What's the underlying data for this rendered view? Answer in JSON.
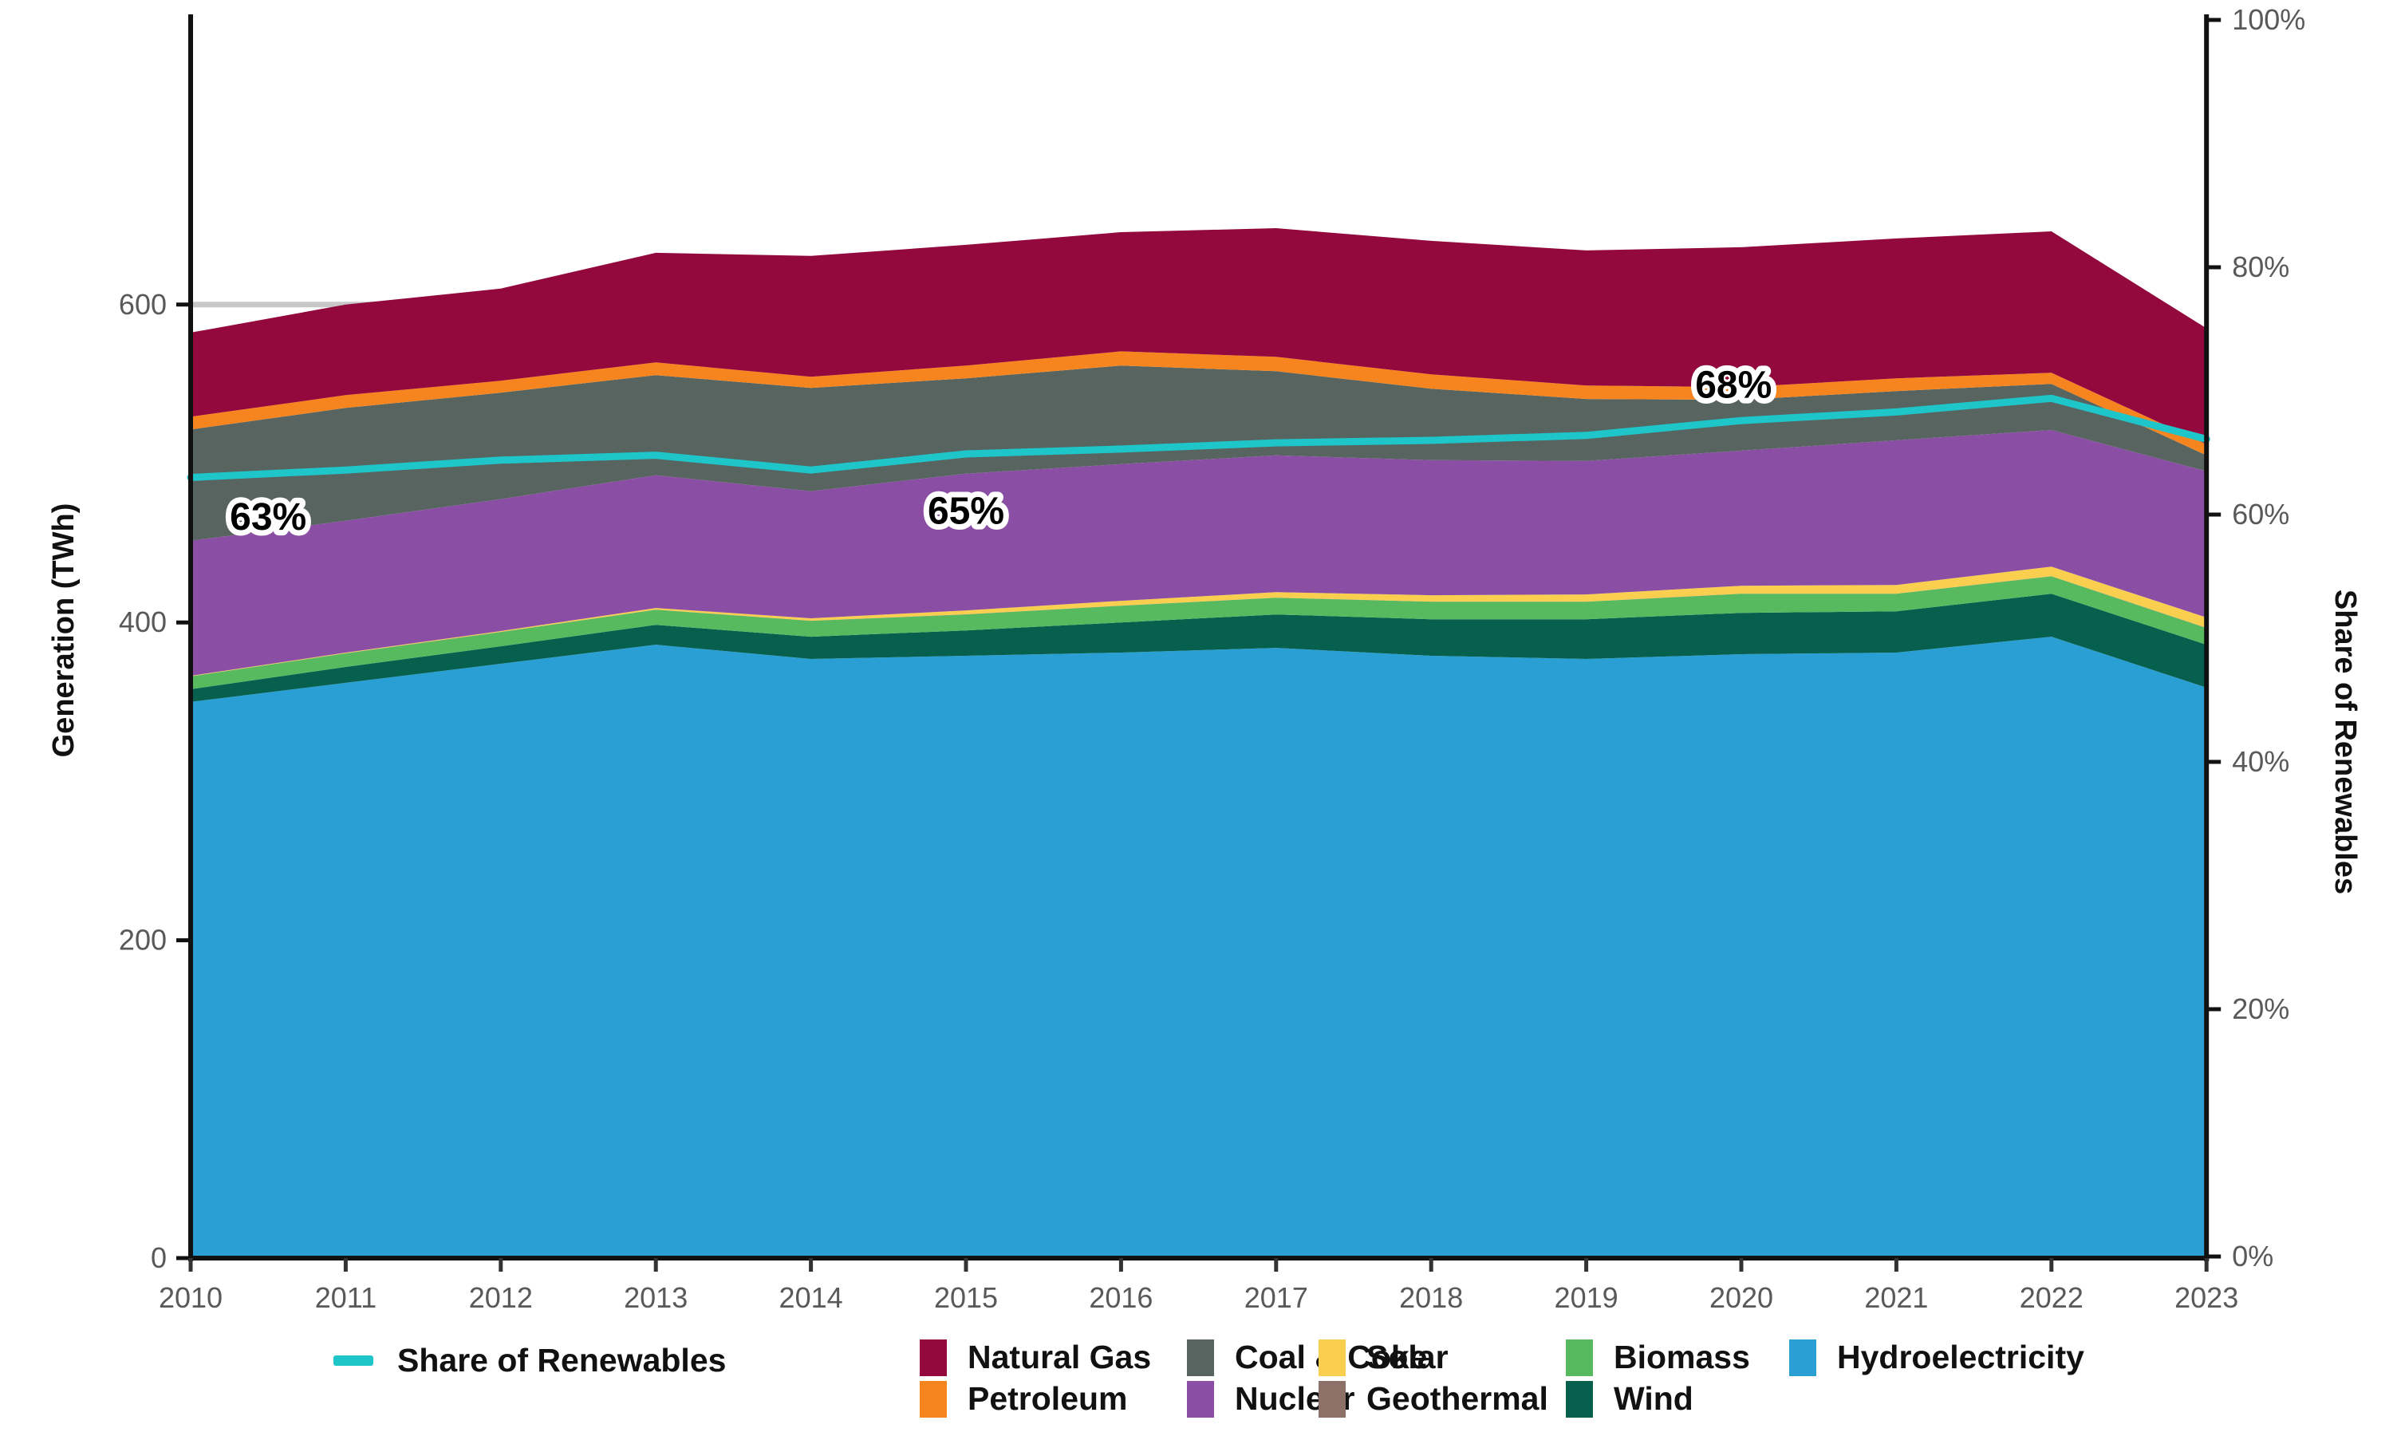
{
  "chart_data": {
    "type": "area",
    "title": "",
    "xlabel": "",
    "ylabel": "Generation (TWh)",
    "y2label": "Share of Renewables",
    "years": [
      2010,
      2011,
      2012,
      2013,
      2014,
      2015,
      2016,
      2017,
      2018,
      2019,
      2020,
      2021,
      2022,
      2023
    ],
    "stack_order_bottom_to_top": [
      "Hydroelectricity",
      "Wind",
      "Biomass",
      "Geothermal",
      "Solar",
      "Nuclear",
      "Coal & Coke",
      "Petroleum",
      "Natural Gas"
    ],
    "series": [
      {
        "name": "Hydroelectricity",
        "color": "#2A9FD4",
        "values": [
          350,
          362,
          374,
          386,
          377,
          379,
          381,
          384,
          379,
          377,
          380,
          381,
          391,
          359
        ]
      },
      {
        "name": "Wind",
        "color": "#07604E",
        "values": [
          8,
          10,
          11,
          12.5,
          14,
          16,
          19,
          21,
          23,
          25,
          26,
          26,
          27,
          27
        ]
      },
      {
        "name": "Biomass",
        "color": "#57BA5F",
        "values": [
          8,
          8.5,
          9,
          9.5,
          10,
          10,
          10.5,
          10.5,
          11,
          11,
          12,
          11,
          11,
          10.5
        ]
      },
      {
        "name": "Geothermal",
        "color": "#8D7168",
        "values": [
          0.1,
          0.1,
          0.1,
          0.1,
          0.1,
          0.1,
          0.1,
          0.1,
          0.1,
          0.1,
          0.1,
          0.1,
          0.1,
          0.1
        ]
      },
      {
        "name": "Solar",
        "color": "#FACF4F",
        "values": [
          0.3,
          0.4,
          0.5,
          1,
          1.5,
          2.5,
          3,
          3.5,
          4,
          4.5,
          5,
          5.5,
          6,
          6.5
        ]
      },
      {
        "name": "Nuclear",
        "color": "#8A4FA5",
        "values": [
          85,
          83,
          83,
          83.5,
          80,
          86,
          86,
          86,
          85,
          84,
          85,
          91,
          86,
          92
        ]
      },
      {
        "name": "Coal & Coke",
        "color": "#586460",
        "values": [
          70,
          71,
          67,
          63,
          65,
          60,
          62,
          53,
          45,
          39,
          32,
          31,
          29,
          10
        ]
      },
      {
        "name": "Petroleum",
        "color": "#F6851F",
        "values": [
          8,
          8,
          7.5,
          8,
          7,
          8,
          9,
          9,
          9,
          8.5,
          8,
          8,
          7,
          7
        ]
      },
      {
        "name": "Natural Gas",
        "color": "#93093D",
        "values": [
          53,
          57,
          58,
          69,
          76,
          76,
          75,
          81,
          84,
          85,
          88,
          88,
          89,
          73
        ]
      }
    ],
    "line_series": {
      "name": "Share of Renewables",
      "color": "#1EC5C9",
      "axis": "right",
      "values_pct": [
        63.0,
        63.6,
        64.4,
        64.8,
        63.6,
        64.9,
        65.3,
        65.8,
        66.0,
        66.4,
        67.6,
        68.3,
        69.4,
        66.1
      ]
    },
    "annotations": [
      {
        "text": "63%",
        "year": 2010.5,
        "pct": 59.8
      },
      {
        "text": "65%",
        "year": 2015.0,
        "pct": 60.3
      },
      {
        "text": "68%",
        "year": 2019.95,
        "pct": 70.5
      }
    ],
    "axes": {
      "left": {
        "title": "Generation (TWh)",
        "tick_values": [
          0,
          200,
          400,
          600
        ],
        "tick_labels": [
          "0",
          "200",
          "400",
          "600"
        ],
        "range": [
          0,
          779
        ]
      },
      "right": {
        "title": "Share of Renewables",
        "tick_values": [
          0,
          20,
          40,
          60,
          80,
          100
        ],
        "tick_labels": [
          "0%",
          "20%",
          "40%",
          "60%",
          "80%",
          "100%"
        ],
        "range": [
          0,
          100
        ]
      },
      "bottom": {
        "tick_labels": [
          "2010",
          "2011",
          "2012",
          "2013",
          "2014",
          "2015",
          "2016",
          "2017",
          "2018",
          "2019",
          "2020",
          "2021",
          "2022",
          "2023"
        ]
      }
    },
    "gridline_600": {
      "value": 600,
      "color": "#C8C8C8"
    }
  },
  "legend": {
    "line_item": {
      "label": "Share of Renewables",
      "color": "#1EC5C9"
    },
    "columns": [
      {
        "items": [
          {
            "label": "Natural Gas",
            "color": "#93093D"
          },
          {
            "label": "Petroleum",
            "color": "#F6851F"
          }
        ]
      },
      {
        "items": [
          {
            "label": "Coal & Coke",
            "color": "#586460"
          },
          {
            "label": "Nuclear",
            "color": "#8A4FA5"
          }
        ]
      },
      {
        "items": [
          {
            "label": "Solar",
            "color": "#FACF4F"
          },
          {
            "label": "Geothermal",
            "color": "#8D7168"
          }
        ]
      },
      {
        "items": [
          {
            "label": "Biomass",
            "color": "#57BA5F"
          },
          {
            "label": "Wind",
            "color": "#07604E"
          }
        ]
      },
      {
        "items": [
          {
            "label": "Hydroelectricity",
            "color": "#2A9FD4"
          }
        ]
      }
    ]
  }
}
